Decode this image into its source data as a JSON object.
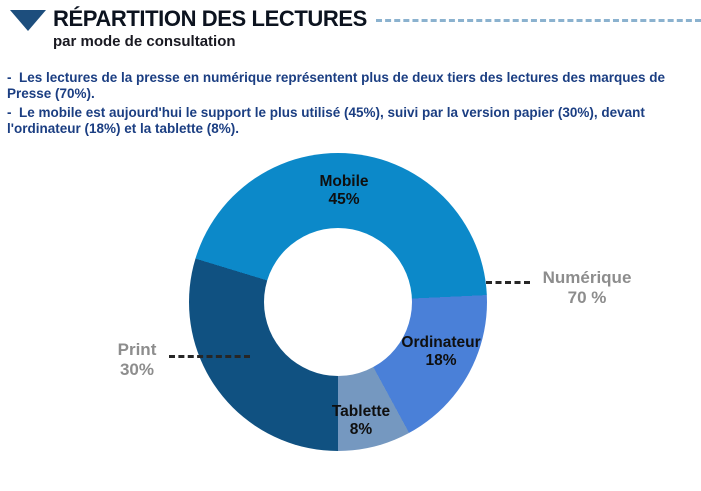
{
  "header": {
    "title": "RÉPARTITION DES LECTURES",
    "subtitle": "par mode de consultation"
  },
  "bullets": [
    "-  Les lectures de la presse en numérique représentent plus de deux tiers des lectures des marques de Presse (70%).",
    "-  Le mobile est aujourd'hui le support le plus utilisé (45%), suivi par la version papier (30%), devant l'ordinateur (18%) et la tablette (8%)."
  ],
  "chart_data": {
    "type": "pie",
    "title": "Répartition des lectures par mode de consultation",
    "donut": true,
    "inner_radius_pct": 50,
    "start_angle_deg": 180,
    "legend_position": "none",
    "segments": [
      {
        "label": "Print",
        "value": 30,
        "pct_label": "30%",
        "color": "#105181"
      },
      {
        "label": "Mobile",
        "value": 45,
        "pct_label": "45%",
        "color": "#0c89c9"
      },
      {
        "label": "Ordinateur",
        "value": 18,
        "pct_label": "18%",
        "color": "#4a80d8"
      },
      {
        "label": "Tablette",
        "value": 8,
        "pct_label": "8%",
        "color": "#7598c0"
      }
    ],
    "callouts": [
      {
        "label": "Numérique",
        "value": "70 %",
        "side": "right"
      },
      {
        "label": "Print",
        "value": "30%",
        "side": "left"
      }
    ]
  },
  "colors": {
    "accent_navy": "#1d4e7d",
    "title_text": "#0c131f",
    "subtitle_text": "#191921",
    "body_text": "#1b3e82",
    "header_dash": "#8bb2cf",
    "gray_label": "#8d8d8d",
    "callout_dash": "#262626",
    "slice_label": "#0f0f0f",
    "page_bg": "#ffffff"
  }
}
